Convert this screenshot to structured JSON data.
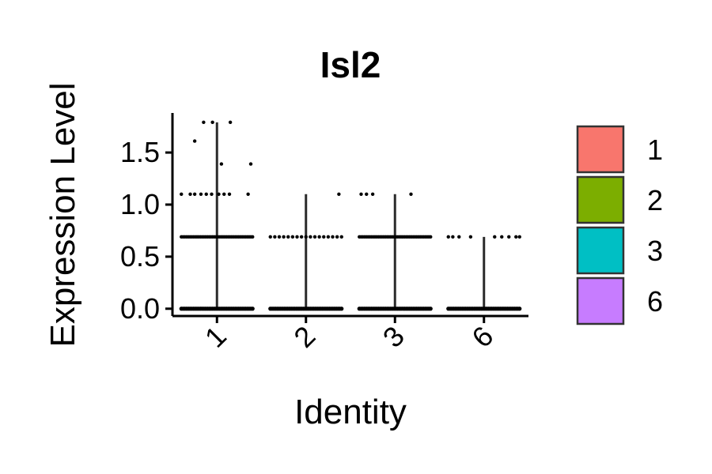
{
  "chart_data": {
    "type": "violin",
    "title": "Isl2",
    "xlabel": "Identity",
    "ylabel": "Expression Level",
    "categories": [
      "1",
      "2",
      "3",
      "6"
    ],
    "ylim": [
      -0.07,
      1.88
    ],
    "yticks": [
      0.0,
      0.5,
      1.0,
      1.5
    ],
    "ytick_labels": [
      "0.0",
      "0.5",
      "1.0",
      "1.5"
    ],
    "max_values": [
      1.79,
      1.1,
      1.1,
      0.69
    ],
    "colors": [
      "#F8766D",
      "#7CAE00",
      "#00BFC4",
      "#C77CFF"
    ],
    "legend": {
      "position": "right",
      "entries": [
        "1",
        "2",
        "3",
        "6"
      ]
    },
    "levels": [
      0.0,
      0.69,
      1.1,
      1.39,
      1.61,
      1.79
    ],
    "points": [
      {
        "category": "1",
        "rows": [
          {
            "y": 0.0,
            "dense": true,
            "min": -0.4,
            "max": 0.4
          },
          {
            "y": 0.69,
            "dense": true,
            "min": -0.4,
            "max": 0.4
          },
          {
            "y": 1.1,
            "offsets": [
              -0.4,
              -0.3,
              -0.25,
              -0.18,
              -0.12,
              -0.06,
              0.02,
              0.08,
              0.14,
              0.35
            ]
          },
          {
            "y": 1.39,
            "offsets": [
              0.05,
              0.38
            ]
          },
          {
            "y": 1.61,
            "offsets": [
              -0.25
            ]
          },
          {
            "y": 1.79,
            "offsets": [
              -0.15,
              -0.05,
              0.15
            ]
          }
        ]
      },
      {
        "category": "2",
        "rows": [
          {
            "y": 0.0,
            "dense": true,
            "min": -0.4,
            "max": 0.4
          },
          {
            "y": 0.69,
            "offsets": [
              -0.4,
              -0.35,
              -0.3,
              -0.25,
              -0.2,
              -0.15,
              -0.1,
              -0.05,
              0.0,
              0.05,
              0.1,
              0.15,
              0.2,
              0.25,
              0.3,
              0.35,
              0.4
            ]
          },
          {
            "y": 1.1,
            "offsets": [
              0.37
            ]
          }
        ]
      },
      {
        "category": "3",
        "rows": [
          {
            "y": 0.0,
            "dense": true,
            "min": -0.4,
            "max": 0.4
          },
          {
            "y": 0.69,
            "dense": true,
            "min": -0.4,
            "max": 0.4
          },
          {
            "y": 1.1,
            "offsets": [
              -0.38,
              -0.32,
              -0.25,
              0.18
            ]
          }
        ]
      },
      {
        "category": "6",
        "rows": [
          {
            "y": 0.0,
            "dense": true,
            "min": -0.4,
            "max": 0.4
          },
          {
            "y": 0.69,
            "offsets": [
              -0.4,
              -0.35,
              -0.28,
              -0.15,
              0.12,
              0.2,
              0.28,
              0.36,
              0.4
            ]
          }
        ]
      }
    ]
  }
}
